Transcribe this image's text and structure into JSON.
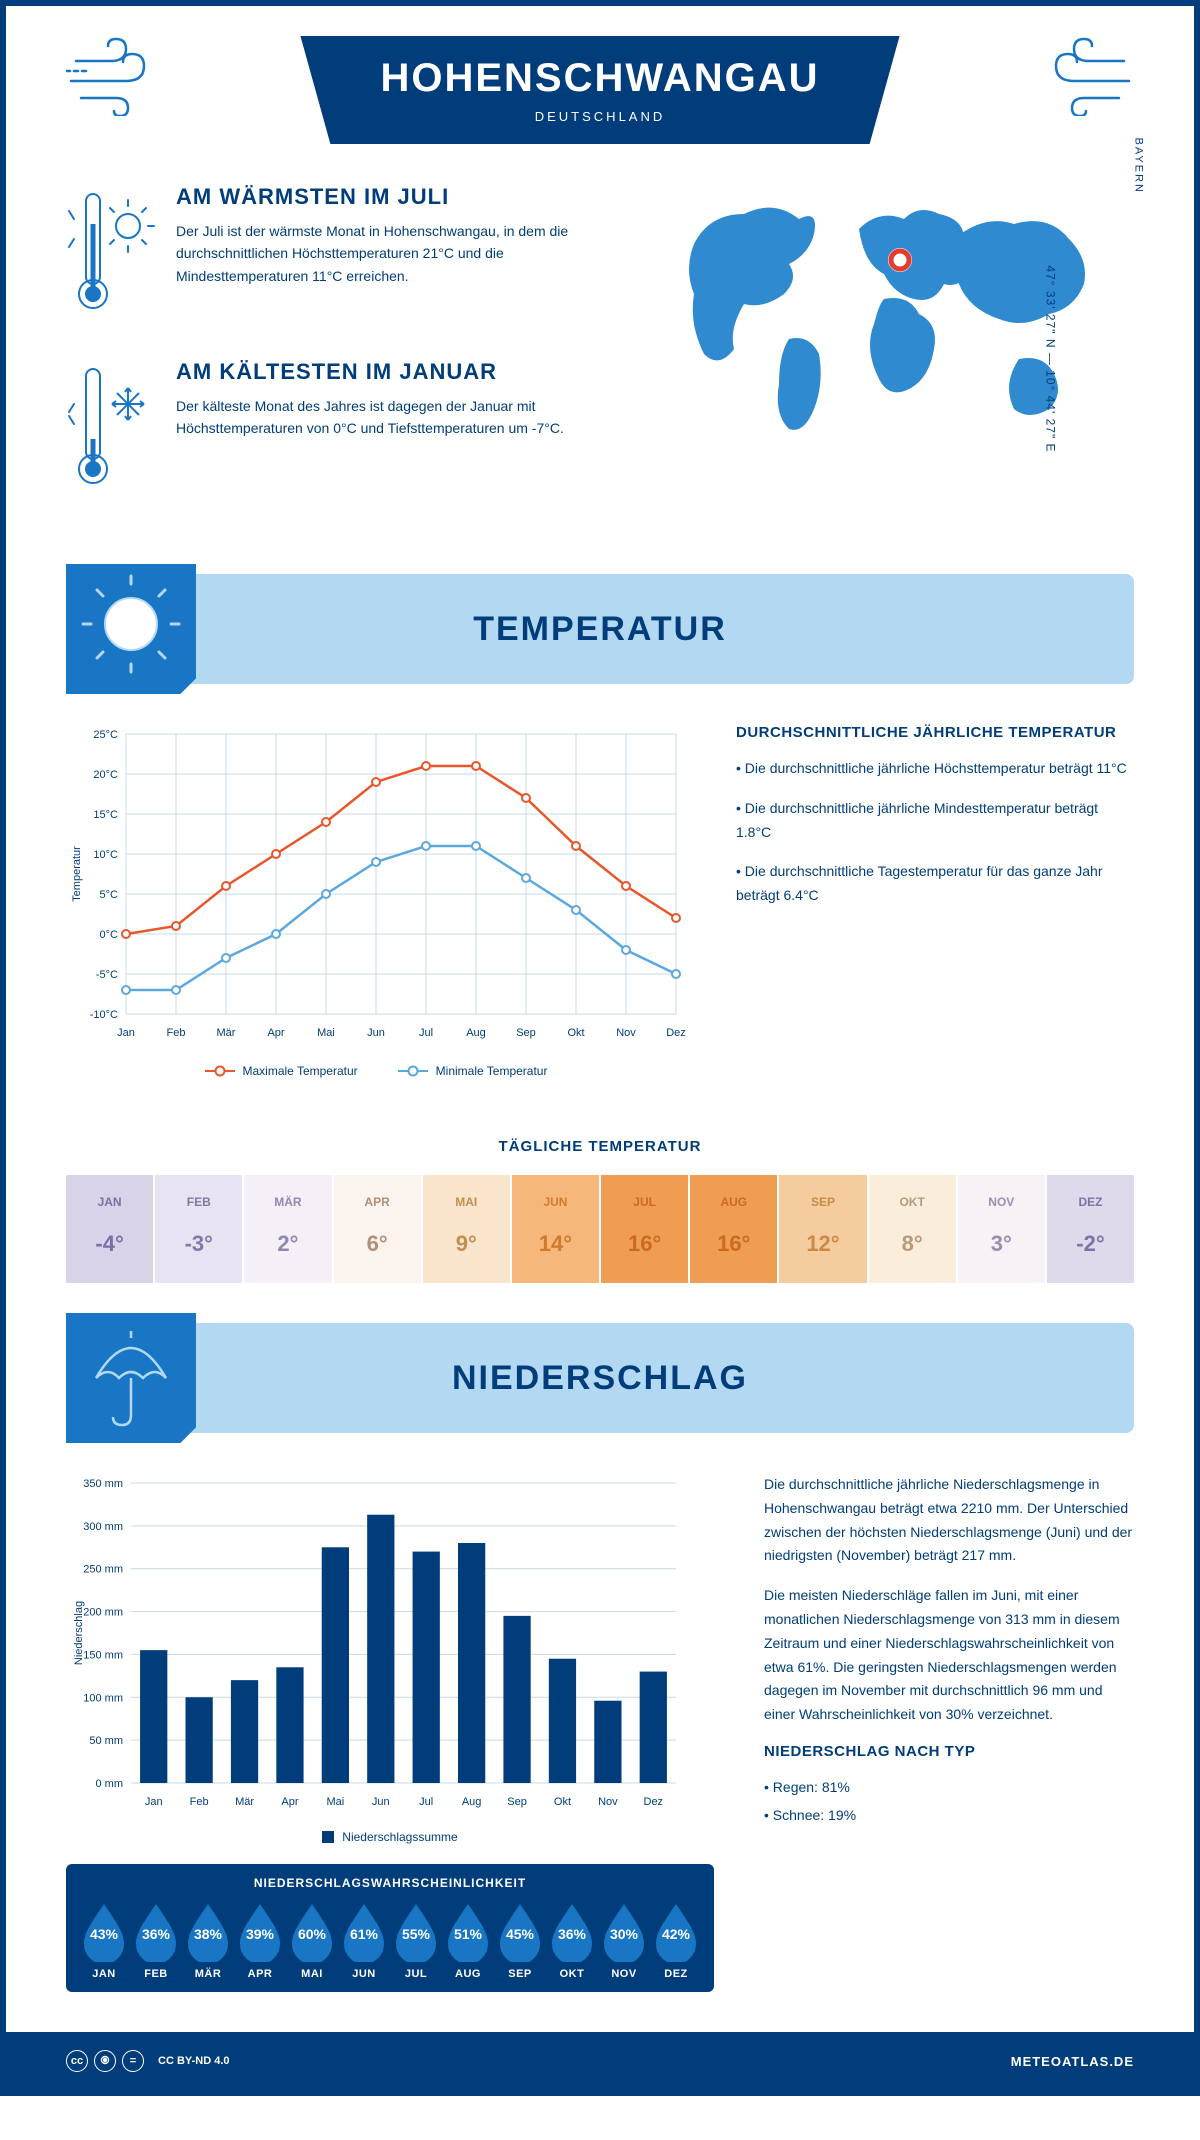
{
  "header": {
    "title": "HOHENSCHWANGAU",
    "country": "DEUTSCHLAND",
    "coordinates": "47° 33' 27\" N — 10° 44' 27\" E",
    "region": "BAYERN"
  },
  "warmest": {
    "title": "AM WÄRMSTEN IM JULI",
    "text": "Der Juli ist der wärmste Monat in Hohenschwangau, in dem die durchschnittlichen Höchsttemperaturen 21°C und die Mindesttemperaturen 11°C erreichen."
  },
  "coldest": {
    "title": "AM KÄLTESTEN IM JANUAR",
    "text": "Der kälteste Monat des Jahres ist dagegen der Januar mit Höchsttemperaturen von 0°C und Tiefsttemperaturen um -7°C."
  },
  "temp_section": {
    "banner": "TEMPERATUR",
    "summary_title": "DURCHSCHNITTLICHE JÄHRLICHE TEMPERATUR",
    "bullet1": "• Die durchschnittliche jährliche Höchsttemperatur beträgt 11°C",
    "bullet2": "• Die durchschnittliche jährliche Mindesttemperatur beträgt 1.8°C",
    "bullet3": "• Die durchschnittliche Tagestemperatur für das ganze Jahr beträgt 6.4°C",
    "chart": {
      "type": "line",
      "ylabel": "Temperatur",
      "ylim": [
        -10,
        25
      ],
      "ytick_step": 5,
      "ytick_labels": [
        "-10°C",
        "-5°C",
        "0°C",
        "5°C",
        "10°C",
        "15°C",
        "20°C",
        "25°C"
      ],
      "months": [
        "Jan",
        "Feb",
        "Mär",
        "Apr",
        "Mai",
        "Jun",
        "Jul",
        "Aug",
        "Sep",
        "Okt",
        "Nov",
        "Dez"
      ],
      "max_series": {
        "label": "Maximale Temperatur",
        "color": "#e8572a",
        "values": [
          0,
          1,
          6,
          10,
          14,
          19,
          21,
          21,
          17,
          11,
          6,
          2
        ]
      },
      "min_series": {
        "label": "Minimale Temperatur",
        "color": "#5ba8e0",
        "values": [
          -7,
          -7,
          -3,
          0,
          5,
          9,
          11,
          11,
          7,
          3,
          -2,
          -5
        ]
      },
      "grid_color": "#c9d9e8",
      "background_color": "#ffffff",
      "label_fontsize": 11
    },
    "daily_title": "TÄGLICHE TEMPERATUR",
    "daily": {
      "months": [
        "JAN",
        "FEB",
        "MÄR",
        "APR",
        "MAI",
        "JUN",
        "JUL",
        "AUG",
        "SEP",
        "OKT",
        "NOV",
        "DEZ"
      ],
      "temps": [
        "-4°",
        "-3°",
        "2°",
        "6°",
        "9°",
        "14°",
        "16°",
        "16°",
        "12°",
        "8°",
        "3°",
        "-2°"
      ],
      "colors": [
        "#d9d3ea",
        "#e8e3f2",
        "#f5f0f8",
        "#fbf3ed",
        "#f9e4cc",
        "#f5b87a",
        "#ef9d52",
        "#ef9d52",
        "#f5cc9e",
        "#faeddc",
        "#f7f2f6",
        "#dfd9ec"
      ],
      "text_colors": [
        "#7b6fa3",
        "#8278a8",
        "#9088ad",
        "#b09078",
        "#c28f50",
        "#d17a2e",
        "#cc6a1f",
        "#cc6a1f",
        "#c98a4a",
        "#b89a7a",
        "#988fb0",
        "#7e73a6"
      ]
    }
  },
  "precip_section": {
    "banner": "NIEDERSCHLAG",
    "chart": {
      "type": "bar",
      "ylabel": "Niederschlag",
      "ylim": [
        0,
        350
      ],
      "ytick_step": 50,
      "ytick_labels": [
        "0 mm",
        "50 mm",
        "100 mm",
        "150 mm",
        "200 mm",
        "250 mm",
        "300 mm",
        "350 mm"
      ],
      "months": [
        "Jan",
        "Feb",
        "Mär",
        "Apr",
        "Mai",
        "Jun",
        "Jul",
        "Aug",
        "Sep",
        "Okt",
        "Nov",
        "Dez"
      ],
      "values": [
        155,
        100,
        120,
        135,
        275,
        313,
        270,
        280,
        195,
        145,
        96,
        130
      ],
      "bar_color": "#003d7a",
      "grid_color": "#c9d9e8",
      "legend_label": "Niederschlagssumme"
    },
    "para1": "Die durchschnittliche jährliche Niederschlagsmenge in Hohenschwangau beträgt etwa 2210 mm. Der Unterschied zwischen der höchsten Niederschlagsmenge (Juni) und der niedrigsten (November) beträgt 217 mm.",
    "para2": "Die meisten Niederschläge fallen im Juni, mit einer monatlichen Niederschlagsmenge von 313 mm in diesem Zeitraum und einer Niederschlagswahrscheinlichkeit von etwa 61%. Die geringsten Niederschlagsmengen werden dagegen im November mit durchschnittlich 96 mm und einer Wahrscheinlichkeit von 30% verzeichnet.",
    "type_title": "NIEDERSCHLAG NACH TYP",
    "type_rain": "• Regen: 81%",
    "type_snow": "• Schnee: 19%",
    "prob_title": "NIEDERSCHLAGSWAHRSCHEINLICHKEIT",
    "prob": {
      "months": [
        "JAN",
        "FEB",
        "MÄR",
        "APR",
        "MAI",
        "JUN",
        "JUL",
        "AUG",
        "SEP",
        "OKT",
        "NOV",
        "DEZ"
      ],
      "values": [
        "43%",
        "36%",
        "38%",
        "39%",
        "60%",
        "61%",
        "55%",
        "51%",
        "45%",
        "36%",
        "30%",
        "42%"
      ],
      "drop_color": "#1976c5"
    }
  },
  "footer": {
    "license": "CC BY-ND 4.0",
    "site": "METEOATLAS.DE"
  },
  "colors": {
    "primary": "#003d7a",
    "accent_blue": "#1976c5",
    "light_blue": "#b3d9f2",
    "map_blue": "#2f8ad0",
    "marker_red": "#e43b2e"
  }
}
